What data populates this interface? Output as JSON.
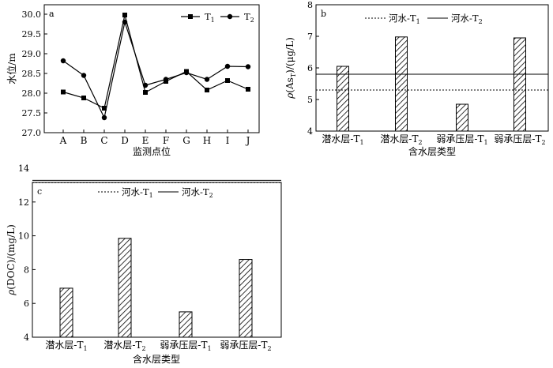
{
  "chart_data": [
    {
      "panel": "a",
      "type": "line",
      "xlabel": "监测点位",
      "ylabel": "水位/m",
      "categories": [
        "A",
        "B",
        "C",
        "D",
        "E",
        "F",
        "G",
        "H",
        "I",
        "J"
      ],
      "ylim": [
        27.0,
        30.0
      ],
      "yticks": [
        "27.0",
        "27.5",
        "28.0",
        "28.5",
        "29.0",
        "29.5",
        "30.0"
      ],
      "series": [
        {
          "name": "T1",
          "marker": "square",
          "values": [
            28.03,
            27.88,
            27.62,
            29.98,
            28.02,
            28.3,
            28.55,
            28.08,
            28.32,
            28.1
          ]
        },
        {
          "name": "T2",
          "marker": "circle",
          "values": [
            28.82,
            28.45,
            27.38,
            29.8,
            28.2,
            28.35,
            28.52,
            28.35,
            28.68,
            28.67
          ]
        }
      ],
      "legend_position": "top-right"
    },
    {
      "panel": "b",
      "type": "bar",
      "xlabel": "含水层类型",
      "ylabel": "ρ(As_T)/(μg/L)",
      "categories": [
        "潜水层-T1",
        "潜水层-T2",
        "弱承压层-T1",
        "弱承压层-T2"
      ],
      "values": [
        6.05,
        6.98,
        4.85,
        6.95
      ],
      "ylim": [
        4,
        8
      ],
      "yticks": [
        "4",
        "5",
        "6",
        "7",
        "8"
      ],
      "reference_lines": [
        {
          "name": "河水-T1",
          "style": "dotted",
          "value": 5.3
        },
        {
          "name": "河水-T2",
          "style": "solid",
          "value": 5.8
        }
      ],
      "legend_position": "top"
    },
    {
      "panel": "c",
      "type": "bar",
      "xlabel": "含水层类型",
      "ylabel": "ρ(DOC)/(mg/L)",
      "categories": [
        "潜水层-T1",
        "潜水层-T2",
        "弱承压层-T1",
        "弱承压层-T2"
      ],
      "values": [
        6.9,
        9.85,
        5.5,
        8.6
      ],
      "ylim": [
        4,
        14
      ],
      "yticks": [
        "4",
        "6",
        "8",
        "10",
        "12",
        "14"
      ],
      "reference_lines": [
        {
          "name": "河水-T1",
          "style": "dotted",
          "value": 13.15
        },
        {
          "name": "河水-T2",
          "style": "solid",
          "value": 13.28
        }
      ],
      "legend_position": "top"
    }
  ]
}
